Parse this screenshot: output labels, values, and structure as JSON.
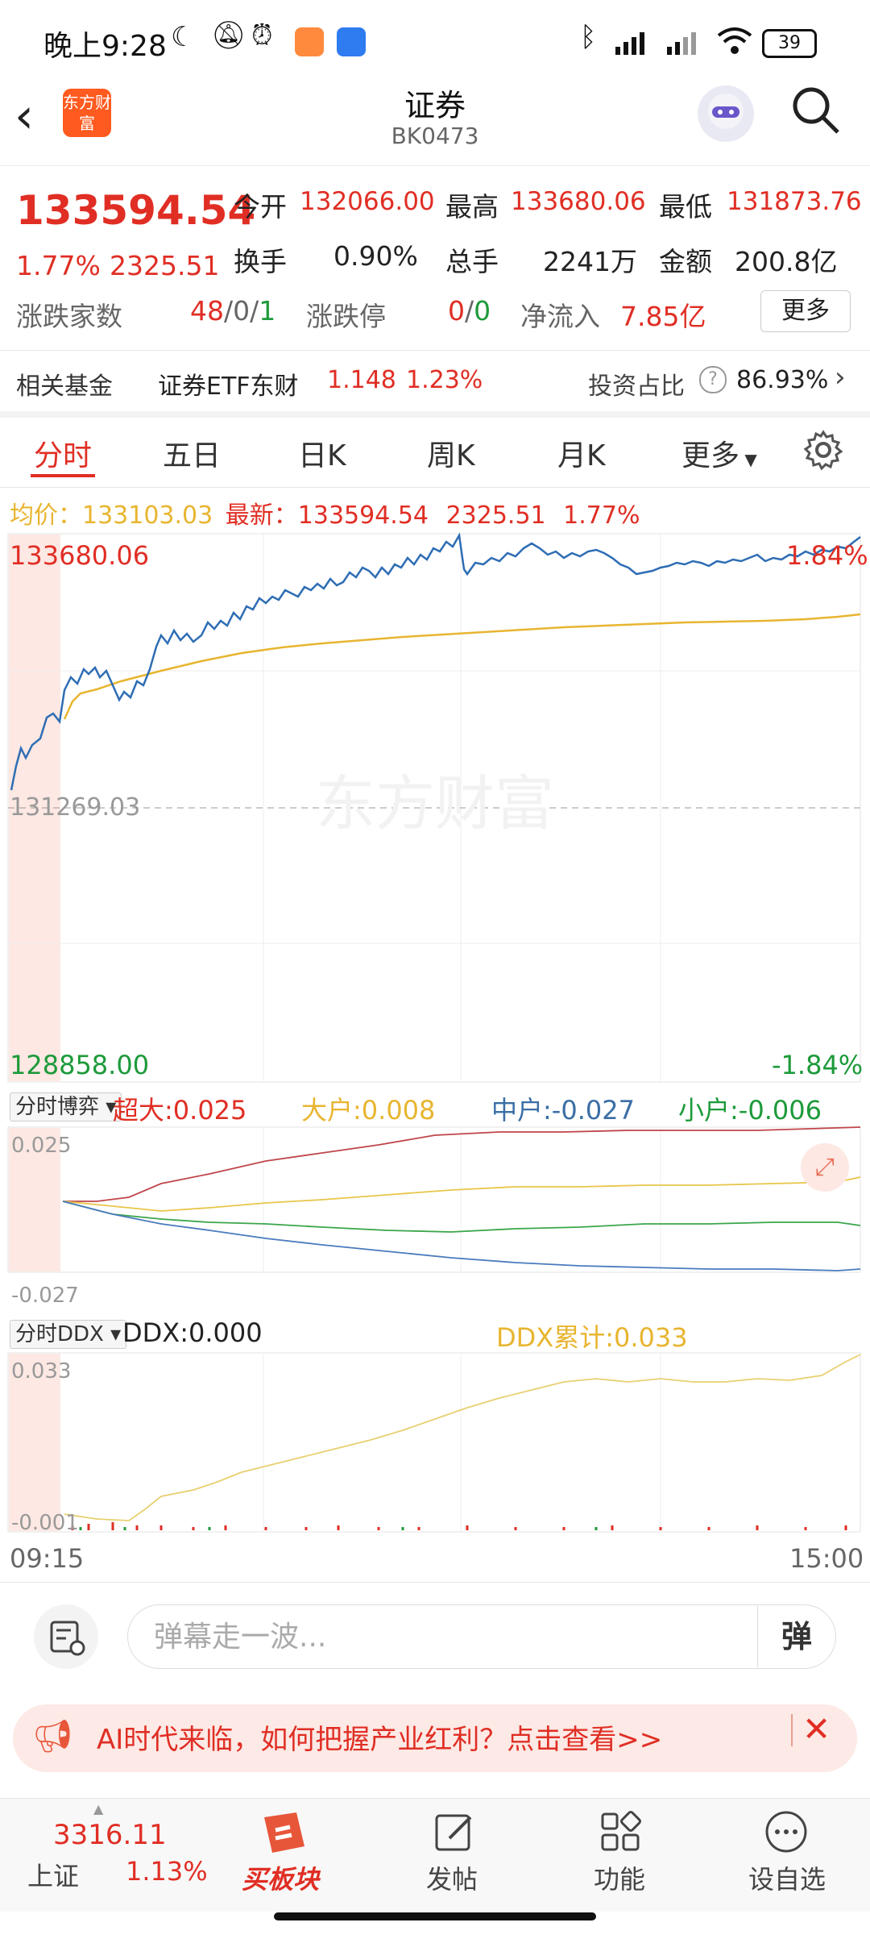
{
  "status_bar": {
    "time": "晚上9:28",
    "battery": "39",
    "icons": [
      "moon-icon",
      "bell-off-icon",
      "alarm-icon",
      "app-icon",
      "app-icon",
      "bluetooth-icon",
      "signal-icon",
      "wifi-icon",
      "battery-icon"
    ]
  },
  "header": {
    "logo_text": "东方财富",
    "title": "证券",
    "code": "BK0473"
  },
  "quote": {
    "price": "133594.54",
    "change_pct": "1.77%",
    "change": "2325.51",
    "open_label": "今开",
    "open": "132066.00",
    "high_label": "最高",
    "high": "133680.06",
    "low_label": "最低",
    "low": "131873.76",
    "turnover_label": "换手",
    "turnover": "0.90%",
    "volume_label": "总手",
    "volume": "2241万",
    "amount_label": "金额",
    "amount": "200.8亿",
    "advdec_label": "涨跌家数",
    "adv": "48",
    "flat": "0",
    "dec": "1",
    "limit_label": "涨跌停",
    "limit_up": "0",
    "limit_down": "0",
    "netflow_label": "净流入",
    "netflow": "7.85亿",
    "more": "更多"
  },
  "fund": {
    "label": "相关基金",
    "name": "证券ETF东财",
    "price": "1.148",
    "pct": "1.23%",
    "ratio_label": "投资占比",
    "ratio": "86.93%"
  },
  "tabs": [
    "分时",
    "五日",
    "日K",
    "周K",
    "月K",
    "更多"
  ],
  "intraday": {
    "avg_label": "均价：",
    "avg": "133103.03",
    "last_label": "最新：",
    "last": "133594.54",
    "last_chg": "2325.51",
    "last_pct": "1.77%",
    "top_price": "133680.06",
    "top_pct": "1.84%",
    "mid_price": "131269.03",
    "bottom_price": "128858.00",
    "bottom_pct": "-1.84%",
    "watermark": "东方财富"
  },
  "game_panel": {
    "selector": "分时博弈",
    "super_large": "超大:0.025",
    "large": "大户:0.008",
    "medium": "中户:-0.027",
    "small": "小户:-0.006",
    "top": "0.025",
    "bottom": "-0.027"
  },
  "ddx_panel": {
    "selector": "分时DDX",
    "ddx": "DDX:0.000",
    "ddx_cum": "DDX累计:0.033",
    "top": "0.033",
    "bottom": "-0.001"
  },
  "time_axis": {
    "start": "09:15",
    "end": "15:00"
  },
  "comment": {
    "placeholder": "弹幕走一波...",
    "danmu_btn": "弹"
  },
  "banner": {
    "text": "AI时代来临，如何把握产业红利？点击查看>>"
  },
  "bottom_nav": {
    "index_value": "3316.11",
    "index_name": "上证",
    "index_pct": "1.13%",
    "items": [
      "买板块",
      "发帖",
      "功能",
      "设自选"
    ]
  },
  "colors": {
    "red": "#e02e24",
    "green": "#1d9a3a",
    "price_line": "#2e6db4",
    "avg_line": "#e8b530"
  }
}
